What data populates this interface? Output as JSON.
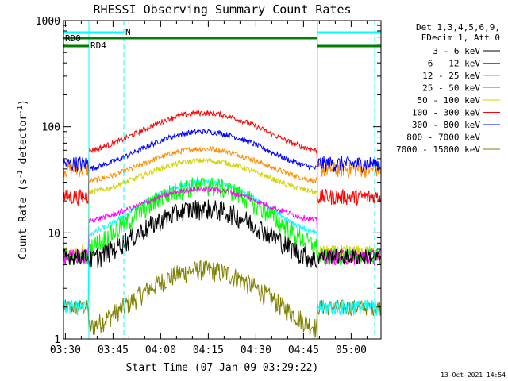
{
  "chart_data": {
    "type": "line",
    "title": "RHESSI Observing Summary Count Rates",
    "xlabel": "Start Time (07-Jan-09 03:29:22)",
    "ylabel_main": "Count Rate (s",
    "ylabel_sup1": "-1",
    "ylabel_mid": " detector",
    "ylabel_sup2": "-1",
    "ylabel_end": ")",
    "y_scale": "log",
    "ylim": [
      1,
      1000
    ],
    "xlim_minutes": [
      0,
      100
    ],
    "x_tick_labels": [
      "03:30",
      "03:45",
      "04:00",
      "04:15",
      "04:30",
      "04:45",
      "05:00"
    ],
    "x_tick_minutes": [
      0.6,
      15.6,
      30.6,
      45.6,
      60.6,
      75.6,
      90.6
    ],
    "y_tick_labels": [
      "1",
      "10",
      "100",
      "1000"
    ],
    "y_tick_values": [
      1,
      10,
      100,
      1000
    ],
    "legend_header": [
      "Det 1,3,4,5,6,9,",
      "FDecim 1, Att 0"
    ],
    "legend_position": "right",
    "series": [
      {
        "name": "3 - 6 keV",
        "color": "#000000",
        "night": 6,
        "base": 4.5,
        "peak": 17
      },
      {
        "name": "6 - 12 keV",
        "color": "#ff00ff",
        "night": 6,
        "base": 12,
        "peak": 26
      },
      {
        "name": "12 - 25 keV",
        "color": "#00ff00",
        "night": 6,
        "base": 5.5,
        "peak": 28
      },
      {
        "name": "25 - 50 keV",
        "color": "#00ffff",
        "night": 2,
        "base": 8,
        "peak": 30
      },
      {
        "name": "50 - 100 keV",
        "color": "#d2d200",
        "night": 6.5,
        "base": 22,
        "peak": 48
      },
      {
        "name": "100 - 300 keV",
        "color": "#ff0000",
        "night": 22,
        "base": 53,
        "peak": 135
      },
      {
        "name": "300 - 800 keV",
        "color": "#0000ff",
        "night": 45,
        "base": 36,
        "peak": 90
      },
      {
        "name": "800 - 7000 keV",
        "color": "#ff8c00",
        "night": 40,
        "base": 28,
        "peak": 62
      },
      {
        "name": "7000 - 15000 keV",
        "color": "#808000",
        "night": 2,
        "base": 1.0,
        "peak": 4.5
      }
    ],
    "daylight_minutes": [
      8,
      80
    ],
    "attenuator_flags": [
      {
        "label": "RD0",
        "color": "#008000"
      },
      {
        "label": "RD4",
        "color": "#008000"
      },
      {
        "label": "N",
        "color": "#00ffff"
      }
    ],
    "flag_intervals_minutes": {
      "RD0": [
        [
          0,
          80
        ]
      ],
      "RD4": [
        [
          0,
          8
        ],
        [
          80,
          100
        ]
      ],
      "N": [
        [
          0,
          19
        ],
        [
          80,
          100
        ]
      ]
    },
    "vertical_markers_minutes": [
      19,
      80,
      98
    ]
  },
  "timestamp": "13-Oct-2021 14:54"
}
